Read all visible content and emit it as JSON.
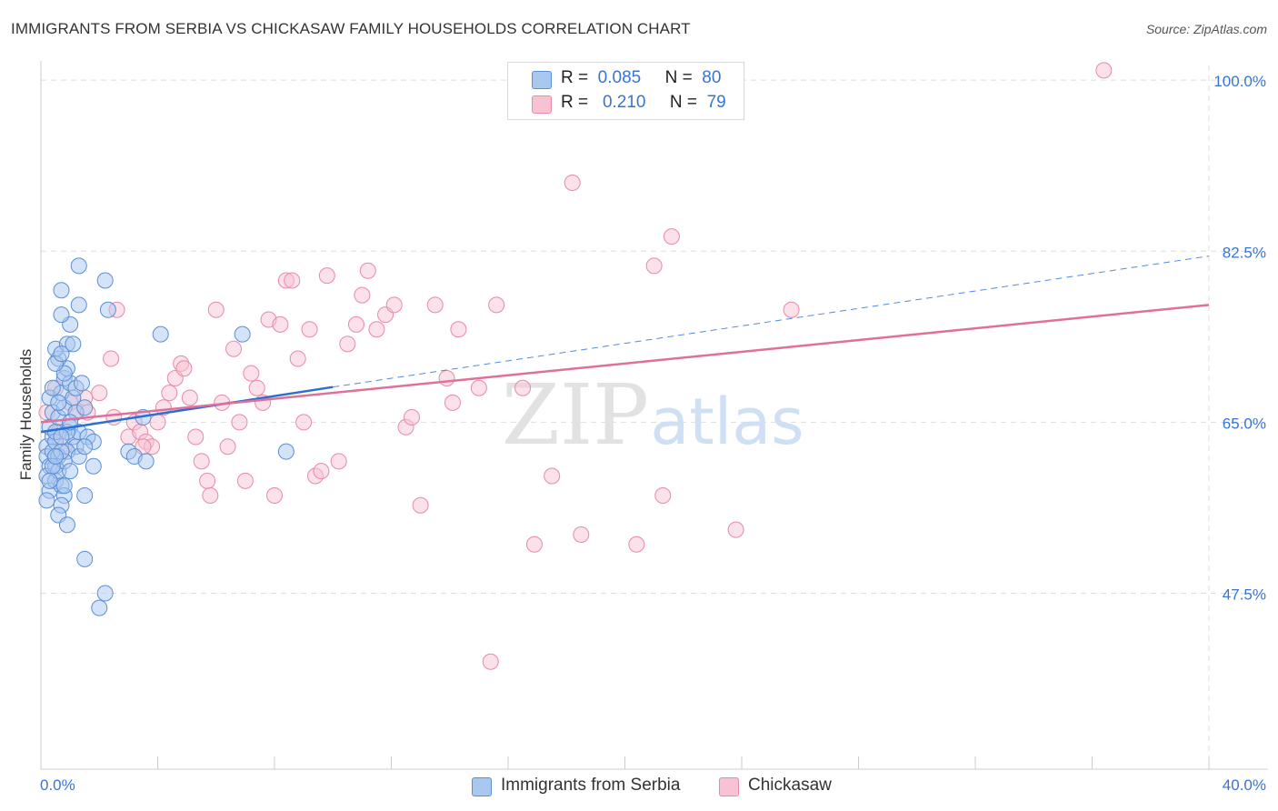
{
  "title": "IMMIGRANTS FROM SERBIA VS CHICKASAW FAMILY HOUSEHOLDS CORRELATION CHART",
  "source": "Source: ZipAtlas.com",
  "watermark": {
    "zip": "ZIP",
    "atlas": "atlas"
  },
  "legend": {
    "rows": [
      {
        "r_label": "R =",
        "r_value": "0.085",
        "n_label": "N =",
        "n_value": "80"
      },
      {
        "r_label": "R =",
        "r_value": "0.210",
        "n_label": "N =",
        "n_value": "79"
      }
    ]
  },
  "colors": {
    "blue_fill": "#a9c8f0",
    "blue_stroke": "#5b8fd6",
    "blue_line": "#2b6fd1",
    "pink_fill": "#f7c3d3",
    "pink_stroke": "#e88aa8",
    "pink_line": "#e0709a",
    "tick_label": "#3a74d1",
    "grid": "#dddddd"
  },
  "chart_data": {
    "type": "scatter",
    "title": "IMMIGRANTS FROM SERBIA VS CHICKASAW FAMILY HOUSEHOLDS CORRELATION CHART",
    "xlabel": "",
    "ylabel": "Family Households",
    "xlim": [
      0,
      40
    ],
    "ylim": [
      29.5,
      101.5
    ],
    "x_tick_labels": [
      "0.0%",
      "40.0%"
    ],
    "y_ticks": [
      47.5,
      65.0,
      82.5,
      100.0
    ],
    "y_tick_labels": [
      "47.5%",
      "65.0%",
      "82.5%",
      "100.0%"
    ],
    "grid": true,
    "legend_position": "top-center",
    "series": [
      {
        "name": "Immigrants from Serbia",
        "color": "blue",
        "points": [
          [
            0.2,
            62.5
          ],
          [
            0.2,
            61.5
          ],
          [
            0.3,
            60.5
          ],
          [
            0.2,
            59.5
          ],
          [
            0.3,
            58.0
          ],
          [
            0.2,
            57.0
          ],
          [
            0.4,
            63.5
          ],
          [
            0.4,
            62.0
          ],
          [
            0.5,
            60.5
          ],
          [
            0.5,
            59.0
          ],
          [
            0.3,
            64.5
          ],
          [
            0.4,
            66.0
          ],
          [
            0.3,
            67.5
          ],
          [
            0.5,
            63.0
          ],
          [
            0.6,
            61.5
          ],
          [
            0.6,
            60.0
          ],
          [
            0.7,
            58.5
          ],
          [
            0.8,
            57.5
          ],
          [
            0.7,
            56.5
          ],
          [
            0.6,
            55.5
          ],
          [
            0.5,
            64.0
          ],
          [
            0.6,
            65.5
          ],
          [
            0.8,
            66.5
          ],
          [
            0.7,
            68.0
          ],
          [
            0.8,
            69.5
          ],
          [
            0.9,
            70.5
          ],
          [
            0.6,
            71.5
          ],
          [
            0.5,
            72.5
          ],
          [
            0.9,
            73.0
          ],
          [
            1.0,
            69.0
          ],
          [
            1.1,
            67.5
          ],
          [
            1.2,
            66.0
          ],
          [
            1.0,
            64.5
          ],
          [
            1.1,
            63.5
          ],
          [
            1.2,
            62.5
          ],
          [
            0.9,
            62.0
          ],
          [
            0.8,
            61.0
          ],
          [
            1.3,
            61.5
          ],
          [
            1.0,
            60.0
          ],
          [
            0.8,
            58.5
          ],
          [
            1.2,
            68.5
          ],
          [
            1.4,
            69.0
          ],
          [
            1.5,
            66.5
          ],
          [
            1.3,
            64.0
          ],
          [
            1.6,
            63.5
          ],
          [
            1.8,
            63.0
          ],
          [
            1.5,
            62.5
          ],
          [
            0.9,
            64.0
          ],
          [
            0.7,
            62.0
          ],
          [
            0.4,
            60.5
          ],
          [
            0.3,
            59.0
          ],
          [
            0.5,
            61.5
          ],
          [
            0.7,
            63.5
          ],
          [
            1.0,
            65.0
          ],
          [
            0.6,
            67.0
          ],
          [
            0.4,
            68.5
          ],
          [
            0.8,
            70.0
          ],
          [
            0.5,
            71.0
          ],
          [
            0.7,
            72.0
          ],
          [
            1.1,
            73.0
          ],
          [
            1.0,
            75.0
          ],
          [
            0.7,
            76.0
          ],
          [
            1.3,
            77.0
          ],
          [
            2.3,
            76.5
          ],
          [
            2.2,
            79.5
          ],
          [
            0.7,
            78.5
          ],
          [
            1.3,
            81.0
          ],
          [
            3.0,
            62.0
          ],
          [
            3.2,
            61.5
          ],
          [
            3.6,
            61.0
          ],
          [
            3.5,
            65.5
          ],
          [
            4.1,
            74.0
          ],
          [
            6.9,
            74.0
          ],
          [
            8.4,
            62.0
          ],
          [
            1.8,
            60.5
          ],
          [
            1.5,
            57.5
          ],
          [
            0.9,
            54.5
          ],
          [
            1.5,
            51.0
          ],
          [
            2.2,
            47.5
          ],
          [
            2.0,
            46.0
          ]
        ],
        "trend": {
          "x": [
            0,
            10
          ],
          "y": [
            64.0,
            68.6
          ],
          "extended_to": [
            40,
            82.0
          ]
        }
      },
      {
        "name": "Chickasaw",
        "color": "pink",
        "points": [
          [
            0.2,
            66.0
          ],
          [
            0.5,
            68.5
          ],
          [
            0.6,
            64.0
          ],
          [
            0.8,
            62.5
          ],
          [
            1.0,
            67.0
          ],
          [
            1.2,
            66.0
          ],
          [
            1.5,
            67.5
          ],
          [
            1.6,
            66.0
          ],
          [
            2.0,
            68.0
          ],
          [
            2.4,
            71.5
          ],
          [
            2.6,
            76.5
          ],
          [
            2.5,
            65.5
          ],
          [
            3.0,
            63.5
          ],
          [
            3.2,
            65.0
          ],
          [
            3.4,
            64.0
          ],
          [
            3.6,
            63.0
          ],
          [
            3.8,
            62.5
          ],
          [
            3.5,
            62.5
          ],
          [
            4.0,
            65.0
          ],
          [
            4.2,
            66.5
          ],
          [
            4.4,
            68.0
          ],
          [
            4.6,
            69.5
          ],
          [
            4.8,
            71.0
          ],
          [
            4.9,
            70.5
          ],
          [
            5.1,
            67.5
          ],
          [
            5.3,
            63.5
          ],
          [
            5.5,
            61.0
          ],
          [
            5.7,
            59.0
          ],
          [
            5.8,
            57.5
          ],
          [
            6.0,
            76.5
          ],
          [
            6.2,
            67.0
          ],
          [
            6.4,
            62.5
          ],
          [
            6.6,
            72.5
          ],
          [
            6.8,
            65.0
          ],
          [
            7.0,
            59.0
          ],
          [
            7.2,
            70.0
          ],
          [
            7.4,
            68.5
          ],
          [
            7.6,
            67.0
          ],
          [
            7.8,
            75.5
          ],
          [
            8.0,
            57.5
          ],
          [
            8.2,
            75.0
          ],
          [
            8.4,
            79.5
          ],
          [
            8.6,
            79.5
          ],
          [
            8.8,
            71.5
          ],
          [
            9.0,
            65.0
          ],
          [
            9.2,
            74.5
          ],
          [
            9.4,
            59.5
          ],
          [
            9.6,
            60.0
          ],
          [
            9.8,
            80.0
          ],
          [
            10.2,
            61.0
          ],
          [
            10.5,
            73.0
          ],
          [
            10.8,
            75.0
          ],
          [
            11.0,
            78.0
          ],
          [
            11.2,
            80.5
          ],
          [
            11.5,
            74.5
          ],
          [
            11.8,
            76.0
          ],
          [
            12.1,
            77.0
          ],
          [
            12.5,
            64.5
          ],
          [
            12.7,
            65.5
          ],
          [
            13.0,
            56.5
          ],
          [
            13.5,
            77.0
          ],
          [
            13.9,
            69.5
          ],
          [
            14.1,
            67.0
          ],
          [
            14.3,
            74.5
          ],
          [
            15.0,
            68.5
          ],
          [
            15.6,
            77.0
          ],
          [
            15.4,
            40.5
          ],
          [
            16.5,
            68.5
          ],
          [
            16.9,
            52.5
          ],
          [
            17.5,
            59.5
          ],
          [
            18.2,
            89.5
          ],
          [
            18.5,
            53.5
          ],
          [
            20.4,
            52.5
          ],
          [
            21.0,
            81.0
          ],
          [
            21.3,
            57.5
          ],
          [
            21.6,
            84.0
          ],
          [
            23.8,
            54.0
          ],
          [
            25.7,
            76.5
          ],
          [
            36.4,
            101.0
          ]
        ],
        "trend": {
          "x": [
            0,
            40
          ],
          "y": [
            65.0,
            77.0
          ]
        }
      }
    ]
  },
  "bottom_legend": {
    "items": [
      {
        "label": "Immigrants from Serbia"
      },
      {
        "label": "Chickasaw"
      }
    ]
  }
}
